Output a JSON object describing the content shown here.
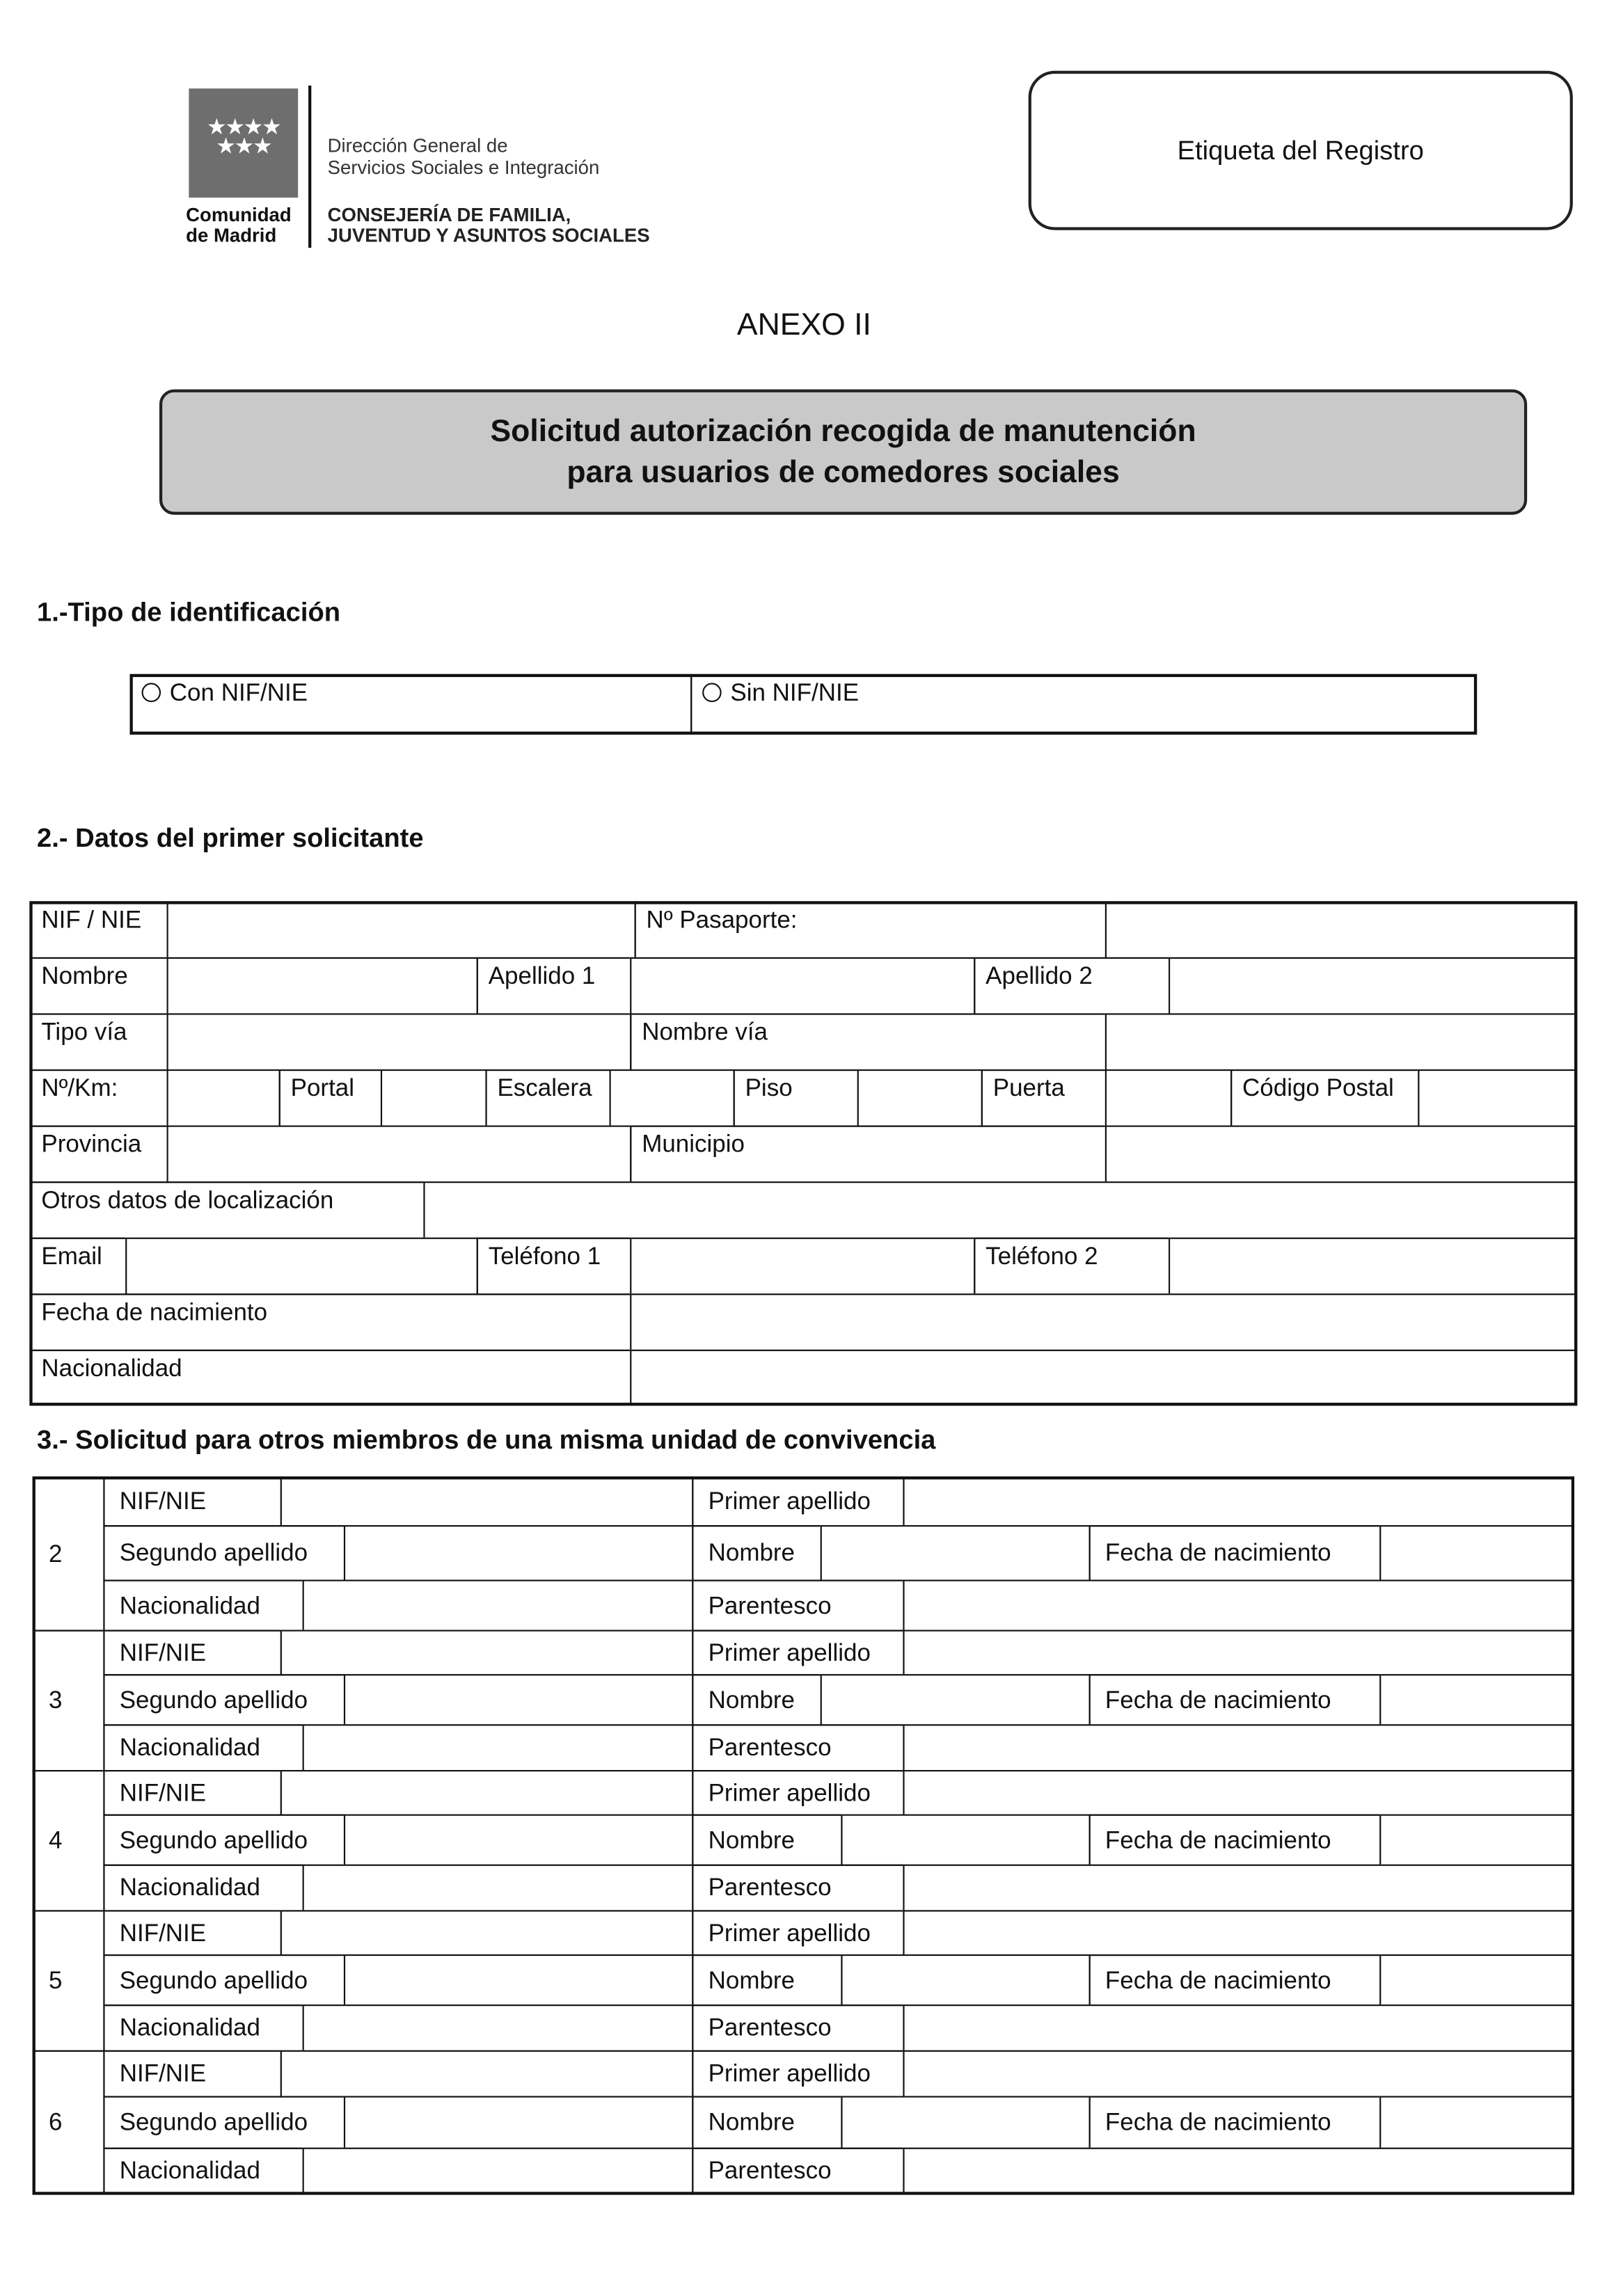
{
  "header": {
    "logo": {
      "stars": "★★★★ ★★★",
      "name_line1": "Comunidad",
      "name_line2": "de Madrid"
    },
    "direccion_line1": "Dirección General de",
    "direccion_line2": "Servicios Sociales e Integración",
    "consejeria_line1": "CONSEJERÍA DE FAMILIA,",
    "consejeria_line2": "JUVENTUD Y ASUNTOS SOCIALES",
    "registro_label": "Etiqueta del Registro"
  },
  "annex": "ANEXO II",
  "title_line1": "Solicitud autorización recogida de manutención",
  "title_line2": "para usuarios de comedores sociales",
  "section1": {
    "heading": "1.-Tipo de identificación",
    "options": [
      "Con NIF/NIE",
      "Sin NIF/NIE"
    ]
  },
  "section2": {
    "heading": "2.- Datos del primer solicitante",
    "rows": [
      [
        "NIF / NIE",
        "",
        "Nº Pasaporte:",
        ""
      ],
      [
        "Nombre",
        "",
        "Apellido 1",
        "",
        "Apellido 2",
        ""
      ],
      [
        "Tipo vía",
        "",
        "Nombre vía",
        ""
      ],
      [
        "Nº/Km:",
        "",
        "Portal",
        "",
        "Escalera",
        "",
        "Piso",
        "",
        "Puerta",
        "",
        "Código Postal",
        ""
      ],
      [
        "Provincia",
        "",
        "Municipio",
        ""
      ],
      [
        "Otros datos de localización",
        ""
      ],
      [
        "Email",
        "",
        "Teléfono 1",
        "",
        "Teléfono 2",
        ""
      ],
      [
        "Fecha de nacimiento",
        ""
      ],
      [
        "Nacionalidad",
        ""
      ]
    ]
  },
  "section3": {
    "heading": "3.- Solicitud para otros miembros de una misma unidad de convivencia",
    "labels": {
      "nif": "NIF/NIE",
      "primer_apellido": "Primer apellido",
      "segundo_apellido": "Segundo apellido",
      "nombre": "Nombre",
      "fecha_nacimiento": "Fecha de nacimiento",
      "nacionalidad": "Nacionalidad",
      "parentesco": "Parentesco"
    },
    "members": [
      "2",
      "3",
      "4",
      "5",
      "6"
    ]
  }
}
